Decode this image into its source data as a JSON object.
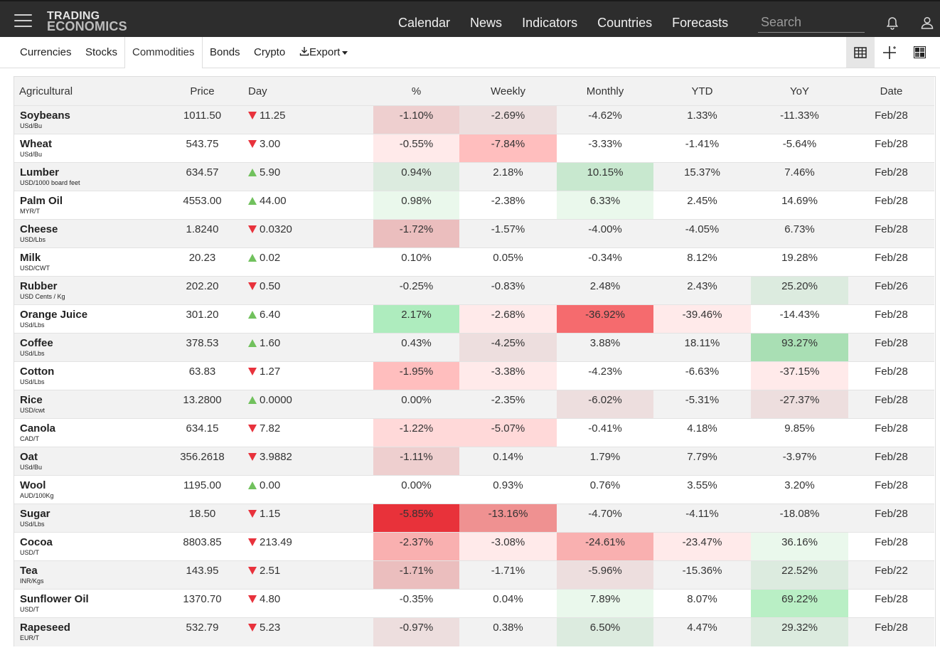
{
  "nav": {
    "logo_line1": "TRADING",
    "logo_line2": "ECONOMICS",
    "links": [
      "Calendar",
      "News",
      "Indicators",
      "Countries",
      "Forecasts"
    ],
    "search_placeholder": "Search",
    "icons": [
      "hamburger-icon",
      "bell-icon",
      "user-icon"
    ]
  },
  "tabs": {
    "items": [
      "Currencies",
      "Stocks",
      "Commodities",
      "Bonds",
      "Crypto"
    ],
    "active": "Commodities",
    "export_label": "Export",
    "view_icons": [
      "table-view-icon",
      "crosshair-view-icon",
      "heatmap-view-icon"
    ]
  },
  "colors": {
    "up_arrow": "#71c15d",
    "down_arrow": "#e8323c",
    "nav_bg": "#2d2d2d"
  },
  "table": {
    "headers": [
      "Agricultural",
      "Price",
      "Day",
      "%",
      "Weekly",
      "Monthly",
      "YTD",
      "YoY",
      "Date"
    ],
    "rows": [
      {
        "name": "Soybeans",
        "unit": "USd/Bu",
        "price": "1011.50",
        "dir": "down",
        "day": "11.25",
        "pct": "-1.10%",
        "weekly": "-2.69%",
        "monthly": "-4.62%",
        "ytd": "1.33%",
        "yoy": "-11.33%",
        "date": "Feb/28",
        "bg": {
          "pct": "#eecfcf",
          "weekly": "#eddede"
        }
      },
      {
        "name": "Wheat",
        "unit": "USd/Bu",
        "price": "543.75",
        "dir": "down",
        "day": "3.00",
        "pct": "-0.55%",
        "weekly": "-7.84%",
        "monthly": "-3.33%",
        "ytd": "-1.41%",
        "yoy": "-5.64%",
        "date": "Feb/28",
        "bg": {
          "pct": "#ffeaea",
          "weekly": "#ffbebe"
        }
      },
      {
        "name": "Lumber",
        "unit": "USD/1000 board feet",
        "price": "634.57",
        "dir": "up",
        "day": "5.90",
        "pct": "0.94%",
        "weekly": "2.18%",
        "monthly": "10.15%",
        "ytd": "15.37%",
        "yoy": "7.46%",
        "date": "Feb/28",
        "bg": {
          "pct": "#dcebdf",
          "monthly": "#c8e8cf"
        }
      },
      {
        "name": "Palm Oil",
        "unit": "MYR/T",
        "price": "4553.00",
        "dir": "up",
        "day": "44.00",
        "pct": "0.98%",
        "weekly": "-2.38%",
        "monthly": "6.33%",
        "ytd": "2.45%",
        "yoy": "14.69%",
        "date": "Feb/28",
        "bg": {
          "pct": "#eaf8ec",
          "monthly": "#eaf8ec"
        }
      },
      {
        "name": "Cheese",
        "unit": "USD/Lbs",
        "price": "1.8240",
        "dir": "down",
        "day": "0.0320",
        "pct": "-1.72%",
        "weekly": "-1.57%",
        "monthly": "-4.00%",
        "ytd": "-4.05%",
        "yoy": "6.73%",
        "date": "Feb/28",
        "bg": {
          "pct": "#ebbebe"
        }
      },
      {
        "name": "Milk",
        "unit": "USD/CWT",
        "price": "20.23",
        "dir": "up",
        "day": "0.02",
        "pct": "0.10%",
        "weekly": "0.05%",
        "monthly": "-0.34%",
        "ytd": "8.12%",
        "yoy": "19.28%",
        "date": "Feb/28",
        "bg": {}
      },
      {
        "name": "Rubber",
        "unit": "USD Cents / Kg",
        "price": "202.20",
        "dir": "down",
        "day": "0.50",
        "pct": "-0.25%",
        "weekly": "-0.83%",
        "monthly": "2.48%",
        "ytd": "2.43%",
        "yoy": "25.20%",
        "date": "Feb/26",
        "bg": {
          "yoy": "#dcebdf"
        }
      },
      {
        "name": "Orange Juice",
        "unit": "USd/Lbs",
        "price": "301.20",
        "dir": "up",
        "day": "6.40",
        "pct": "2.17%",
        "weekly": "-2.68%",
        "monthly": "-36.92%",
        "ytd": "-39.46%",
        "yoy": "-14.43%",
        "date": "Feb/28",
        "bg": {
          "pct": "#aeecbe",
          "weekly": "#ffeaea",
          "monthly": "#f56b6e",
          "ytd": "#ffeaea"
        }
      },
      {
        "name": "Coffee",
        "unit": "USd/Lbs",
        "price": "378.53",
        "dir": "up",
        "day": "1.60",
        "pct": "0.43%",
        "weekly": "-4.25%",
        "monthly": "3.88%",
        "ytd": "18.11%",
        "yoy": "93.27%",
        "date": "Feb/28",
        "bg": {
          "weekly": "#eddede",
          "yoy": "#a9dfb4"
        }
      },
      {
        "name": "Cotton",
        "unit": "USd/Lbs",
        "price": "63.83",
        "dir": "down",
        "day": "1.27",
        "pct": "-1.95%",
        "weekly": "-3.38%",
        "monthly": "-4.23%",
        "ytd": "-6.63%",
        "yoy": "-37.15%",
        "date": "Feb/28",
        "bg": {
          "pct": "#ffbebe",
          "weekly": "#ffeaea",
          "yoy": "#ffeaea"
        }
      },
      {
        "name": "Rice",
        "unit": "USD/cwt",
        "price": "13.2800",
        "dir": "up",
        "day": "0.0000",
        "pct": "0.00%",
        "weekly": "-2.35%",
        "monthly": "-6.02%",
        "ytd": "-5.31%",
        "yoy": "-27.37%",
        "date": "Feb/28",
        "bg": {
          "monthly": "#eddede",
          "yoy": "#eddede"
        }
      },
      {
        "name": "Canola",
        "unit": "CAD/T",
        "price": "634.15",
        "dir": "down",
        "day": "7.82",
        "pct": "-1.22%",
        "weekly": "-5.07%",
        "monthly": "-0.41%",
        "ytd": "4.18%",
        "yoy": "9.85%",
        "date": "Feb/28",
        "bg": {
          "pct": "#ffd9d9",
          "weekly": "#ffd9d9"
        }
      },
      {
        "name": "Oat",
        "unit": "USd/Bu",
        "price": "356.2618",
        "dir": "down",
        "day": "3.9882",
        "pct": "-1.11%",
        "weekly": "0.14%",
        "monthly": "1.79%",
        "ytd": "7.79%",
        "yoy": "-3.97%",
        "date": "Feb/28",
        "bg": {
          "pct": "#eecfcf"
        }
      },
      {
        "name": "Wool",
        "unit": "AUD/100Kg",
        "price": "1195.00",
        "dir": "up",
        "day": "0.00",
        "pct": "0.00%",
        "weekly": "0.93%",
        "monthly": "0.76%",
        "ytd": "3.55%",
        "yoy": "3.20%",
        "date": "Feb/28",
        "bg": {}
      },
      {
        "name": "Sugar",
        "unit": "USd/Lbs",
        "price": "18.50",
        "dir": "down",
        "day": "1.15",
        "pct": "-5.85%",
        "weekly": "-13.16%",
        "monthly": "-4.70%",
        "ytd": "-4.11%",
        "yoy": "-18.08%",
        "date": "Feb/28",
        "bg": {
          "pct": "#e8323a",
          "weekly": "#ef9191"
        }
      },
      {
        "name": "Cocoa",
        "unit": "USD/T",
        "price": "8803.85",
        "dir": "down",
        "day": "213.49",
        "pct": "-2.37%",
        "weekly": "-3.08%",
        "monthly": "-24.61%",
        "ytd": "-23.47%",
        "yoy": "36.16%",
        "date": "Feb/28",
        "bg": {
          "pct": "#f9b0b0",
          "weekly": "#ffeaea",
          "monthly": "#f9b0b0",
          "ytd": "#ffeaea",
          "yoy": "#eaf8ec"
        }
      },
      {
        "name": "Tea",
        "unit": "INR/Kgs",
        "price": "143.95",
        "dir": "down",
        "day": "2.51",
        "pct": "-1.71%",
        "weekly": "-1.71%",
        "monthly": "-5.96%",
        "ytd": "-15.36%",
        "yoy": "22.52%",
        "date": "Feb/22",
        "bg": {
          "pct": "#ebbebe",
          "monthly": "#eddede",
          "yoy": "#dcebdf"
        }
      },
      {
        "name": "Sunflower Oil",
        "unit": "USD/T",
        "price": "1370.70",
        "dir": "down",
        "day": "4.80",
        "pct": "-0.35%",
        "weekly": "0.04%",
        "monthly": "7.89%",
        "ytd": "8.07%",
        "yoy": "69.22%",
        "date": "Feb/28",
        "bg": {
          "monthly": "#eaf8ec",
          "yoy": "#b9efc5"
        }
      },
      {
        "name": "Rapeseed",
        "unit": "EUR/T",
        "price": "532.79",
        "dir": "down",
        "day": "5.23",
        "pct": "-0.97%",
        "weekly": "0.38%",
        "monthly": "6.50%",
        "ytd": "4.47%",
        "yoy": "29.32%",
        "date": "Feb/28",
        "bg": {
          "pct": "#eddede",
          "monthly": "#dcebdf",
          "yoy": "#dcebdf"
        }
      }
    ]
  }
}
